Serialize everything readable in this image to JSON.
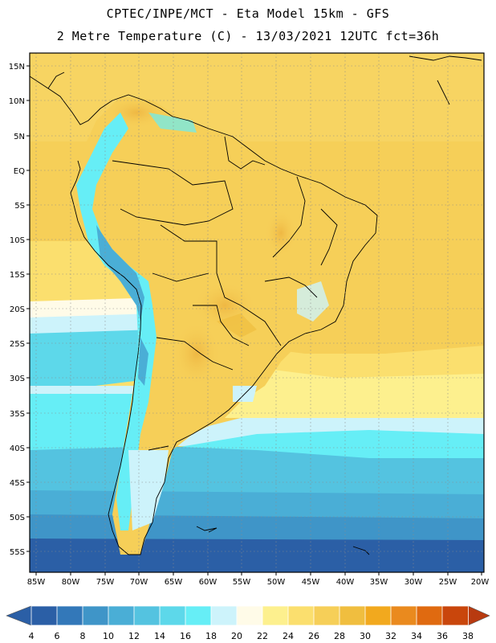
{
  "title_line1": "CPTEC/INPE/MCT -  Eta Model 15km - GFS",
  "title_line2": "2 Metre Temperature (C) - 13/03/2021 12UTC fct=36h",
  "lat_labels": [
    "15N",
    "10N",
    "5N",
    "EQ",
    "5S",
    "10S",
    "15S",
    "20S",
    "25S",
    "30S",
    "35S",
    "40S",
    "45S",
    "50S",
    "55S"
  ],
  "lon_labels": [
    "85W",
    "80W",
    "75W",
    "70W",
    "65W",
    "60W",
    "55W",
    "50W",
    "45W",
    "40W",
    "35W",
    "30W",
    "25W",
    "20W"
  ],
  "colorbar": {
    "ticks": [
      "4",
      "6",
      "8",
      "10",
      "12",
      "14",
      "16",
      "18",
      "20",
      "22",
      "24",
      "26",
      "28",
      "30",
      "32",
      "34",
      "36",
      "38"
    ],
    "colors": [
      "#2b5fa6",
      "#3378b9",
      "#3f95c8",
      "#4aaed6",
      "#54c3e0",
      "#5dd8ea",
      "#66eef6",
      "#cdf3fb",
      "#fffbe8",
      "#fdf08e",
      "#fbdf6e",
      "#f6cf58",
      "#f0be3f",
      "#f2a91e",
      "#ea8a1e",
      "#e06a10",
      "#c9460c",
      "#b83a10"
    ]
  }
}
